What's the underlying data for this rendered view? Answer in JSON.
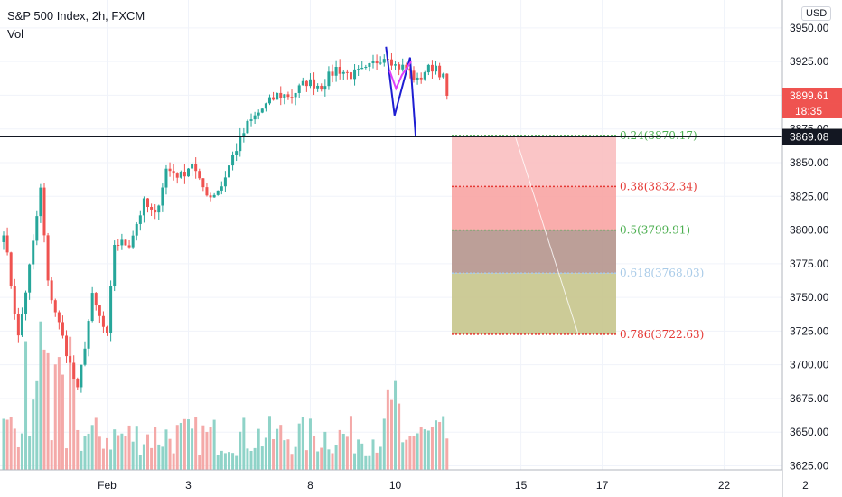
{
  "legend": {
    "title": "S&P 500 Index, 2h, FXCM",
    "volume": "Vol"
  },
  "currency_button": "USD",
  "last_price": {
    "label": "3899.61",
    "countdown": "18:35"
  },
  "crosshair_label": "3869.08",
  "colors": {
    "up": "#26a69a",
    "down": "#ef5350",
    "vol_up": "#8fd3c8",
    "vol_down": "#f4a9a8",
    "pattern_blue": "#1e1ed2",
    "pattern_magenta": "#e040fb"
  },
  "chart_data": {
    "type": "candlestick",
    "title": "S&P 500 Index, 2h, FXCM",
    "ylim": [
      3622,
      3968
    ],
    "y_ticks": [
      3625,
      3650,
      3675,
      3700,
      3725,
      3750,
      3775,
      3800,
      3825,
      3850,
      3875,
      3900,
      3925,
      3950
    ],
    "y_tick_labels": [
      "3625.00",
      "3650.00",
      "3675.00",
      "3700.00",
      "3725.00",
      "3750.00",
      "3775.00",
      "3800.00",
      "3825.00",
      "3850.00",
      "3875.00",
      "3900.00",
      "3925.00",
      "3950.00"
    ],
    "x_ticks": [
      {
        "label": "Feb",
        "index": 28
      },
      {
        "label": "3",
        "index": 50
      },
      {
        "label": "8",
        "index": 83
      },
      {
        "label": "10",
        "index": 106
      },
      {
        "label": "15",
        "index": 140
      },
      {
        "label": "17",
        "index": 162
      },
      {
        "label": "22",
        "index": 195
      },
      {
        "label": "2",
        "index": 217
      }
    ],
    "candle_count": 121,
    "anchors": [
      [
        0,
        3800
      ],
      [
        4,
        3720
      ],
      [
        8,
        3790
      ],
      [
        10,
        3830
      ],
      [
        12,
        3760
      ],
      [
        16,
        3720
      ],
      [
        20,
        3680
      ],
      [
        24,
        3750
      ],
      [
        28,
        3720
      ],
      [
        30,
        3790
      ],
      [
        34,
        3790
      ],
      [
        38,
        3820
      ],
      [
        41,
        3810
      ],
      [
        44,
        3845
      ],
      [
        48,
        3840
      ],
      [
        51,
        3850
      ],
      [
        53,
        3835
      ],
      [
        56,
        3825
      ],
      [
        59,
        3833
      ],
      [
        62,
        3855
      ],
      [
        66,
        3878
      ],
      [
        70,
        3890
      ],
      [
        74,
        3900
      ],
      [
        78,
        3900
      ],
      [
        82,
        3910
      ],
      [
        86,
        3907
      ],
      [
        90,
        3920
      ],
      [
        94,
        3915
      ],
      [
        98,
        3918
      ],
      [
        102,
        3928
      ],
      [
        104,
        3930
      ],
      [
        106,
        3922
      ],
      [
        109,
        3920
      ],
      [
        112,
        3910
      ],
      [
        114,
        3918
      ],
      [
        117,
        3922
      ],
      [
        120,
        3908
      ]
    ],
    "last_price": 3899.61,
    "horizontal_line": 3869.08,
    "fibonacci": [
      {
        "level": "0.24",
        "price": 3870.17,
        "label": "0.24(3870.17)",
        "line_color": "#4caf50",
        "text_color": "#4caf50",
        "fill": "#f9bfc0"
      },
      {
        "level": "0.38",
        "price": 3832.34,
        "label": "0.38(3832.34)",
        "line_color": "#e53935",
        "text_color": "#e53935",
        "fill": "#f8a4a3"
      },
      {
        "level": "0.5",
        "price": 3799.91,
        "label": "0.5(3799.91)",
        "line_color": "#4caf50",
        "text_color": "#4caf50",
        "fill": "#b5958d"
      },
      {
        "level": "0.618",
        "price": 3768.03,
        "label": "0.618(3768.03)",
        "line_color": "#a9cbe8",
        "text_color": "#a9cbe8",
        "fill": "#c7c58c"
      },
      {
        "level": "0.786",
        "price": 3722.63,
        "label": "0.786(3722.63)",
        "line_color": "#e53935",
        "text_color": "#e53935"
      }
    ],
    "pattern_blue": [
      [
        103.5,
        3936
      ],
      [
        105.8,
        3885
      ],
      [
        110,
        3928
      ],
      [
        111.5,
        3870
      ]
    ],
    "pattern_magenta": [
      [
        104.5,
        3918
      ],
      [
        106.2,
        3905
      ],
      [
        107.8,
        3915
      ],
      [
        110.3,
        3925
      ]
    ],
    "grid": true
  }
}
